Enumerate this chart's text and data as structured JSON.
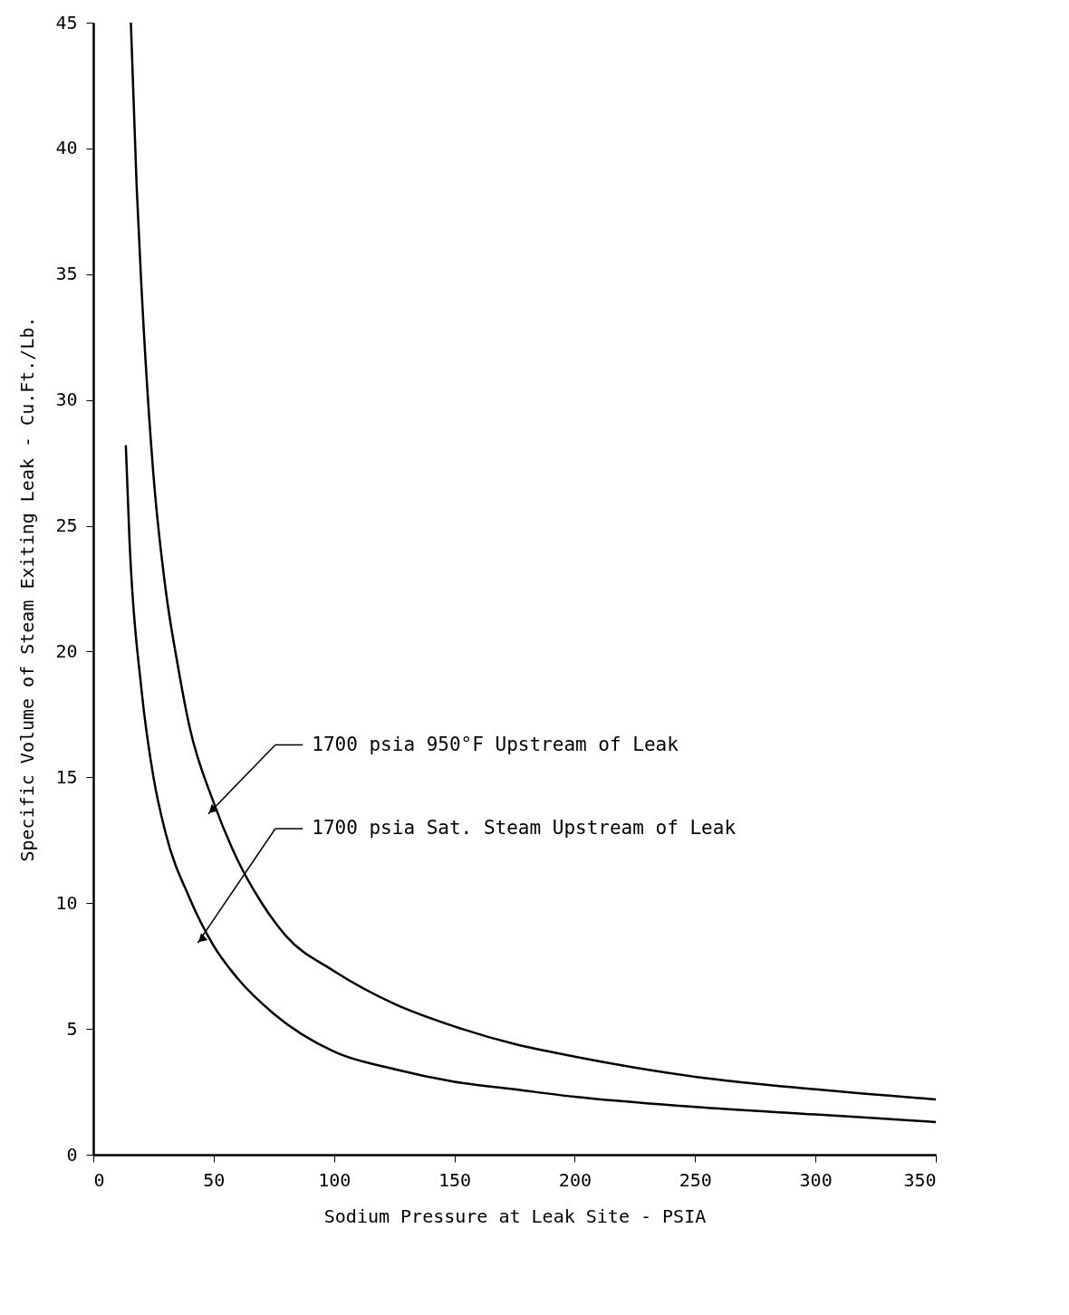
{
  "chart_data": {
    "type": "line",
    "xlabel": "Sodium Pressure at Leak Site - PSIA",
    "ylabel": "Specific Volume of Steam Exiting Leak - Cu.Ft./Lb.",
    "xlim": [
      0,
      350
    ],
    "xticks": [
      0,
      50,
      100,
      150,
      200,
      250,
      300,
      350
    ],
    "ylim": [
      0,
      45
    ],
    "yticks": [
      0,
      5,
      10,
      15,
      20,
      25,
      30,
      35,
      40,
      45
    ],
    "grid": false,
    "marker": "none",
    "line_style": "solid",
    "series": [
      {
        "color": "#000000",
        "x": [
          15.6,
          18,
          20,
          25,
          30,
          35,
          40,
          50,
          60,
          70,
          80,
          100,
          125,
          150,
          175,
          200,
          250,
          300,
          350
        ],
        "values": [
          45,
          38.5,
          34.5,
          27,
          22.5,
          19.5,
          17,
          14,
          11.7,
          10,
          8.7,
          7.3,
          6,
          5.1,
          4.4,
          3.9,
          3.1,
          2.6,
          2.2
        ]
      },
      {
        "color": "#000000",
        "x": [
          13.5,
          15,
          20,
          25,
          30,
          40,
          50,
          60,
          75,
          100,
          125,
          150,
          175,
          200,
          250,
          300,
          350
        ],
        "values": [
          28.2,
          24.5,
          18.5,
          15,
          12.8,
          10.2,
          8.3,
          7,
          5.6,
          4.1,
          3.4,
          2.9,
          2.6,
          2.3,
          1.9,
          1.6,
          1.3
        ]
      }
    ],
    "annotations": [
      "1700 psia 950°F Upstream of Leak",
      "1700 psia Sat. Steam Upstream of Leak"
    ]
  }
}
